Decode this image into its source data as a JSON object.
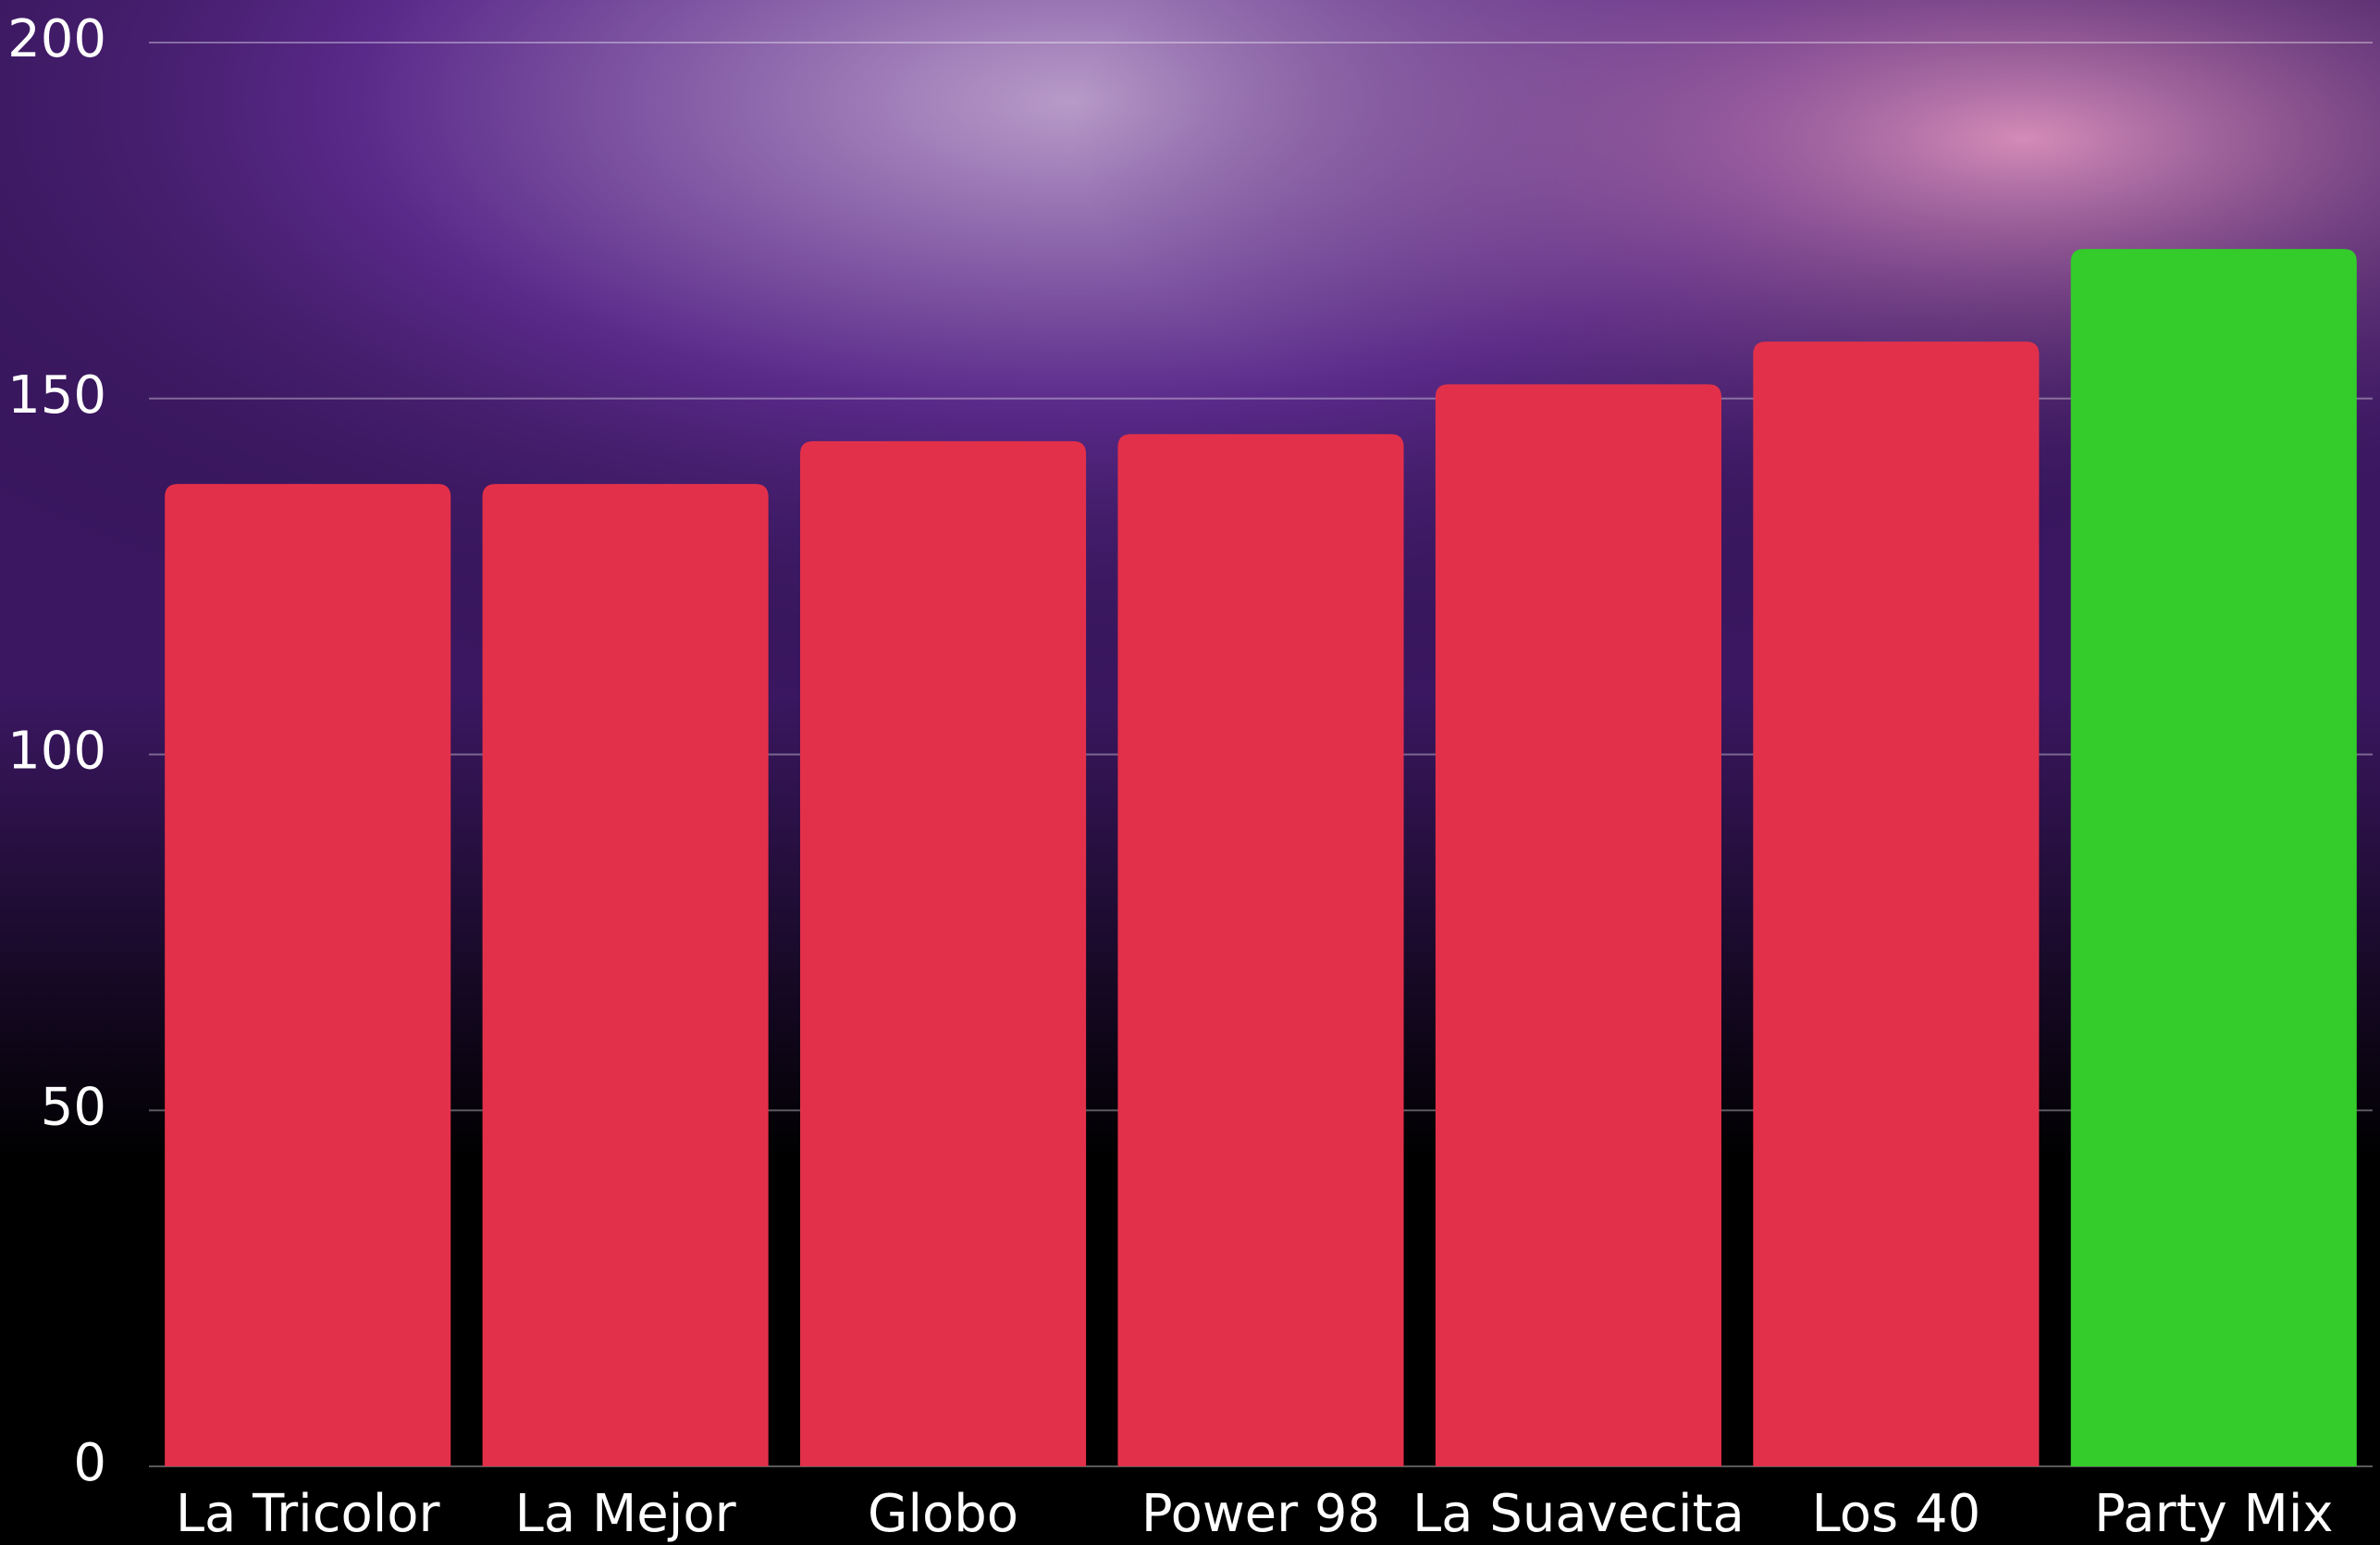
{
  "chart_data": {
    "type": "bar",
    "categories": [
      "La Tricolor",
      "La Mejor",
      "Globo",
      "Power 98",
      "La Suavecita",
      "Los 40",
      "Party Mix"
    ],
    "values": [
      138,
      138,
      144,
      145,
      152,
      158,
      171
    ],
    "colors": [
      "#e3304a",
      "#e3304a",
      "#e3304a",
      "#e3304a",
      "#e3304a",
      "#e3304a",
      "#33cc2a"
    ],
    "ylim": [
      0,
      200
    ],
    "yticks": [
      0,
      50,
      100,
      150,
      200
    ],
    "grid": true
  }
}
